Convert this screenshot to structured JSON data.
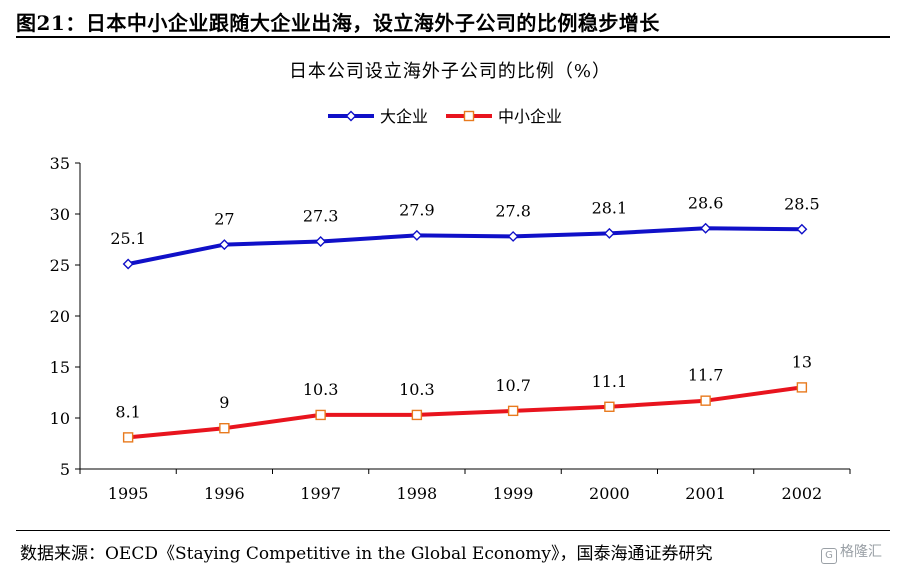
{
  "figure": {
    "title": "图21：日本中小企业跟随大企业出海，设立海外子公司的比例稳步增长",
    "source": "数据来源：OECD《Staying Competitive in the Global Economy》，国泰海通证券研究",
    "watermark": "格隆汇",
    "watermark_icon": "G"
  },
  "chart_data": {
    "type": "line",
    "title": "日本公司设立海外子公司的比例（%）",
    "xlabel": "",
    "ylabel": "",
    "categories": [
      "1995",
      "1996",
      "1997",
      "1998",
      "1999",
      "2000",
      "2001",
      "2002"
    ],
    "ylim": [
      5,
      35
    ],
    "yticks": [
      5,
      10,
      15,
      20,
      25,
      30,
      35
    ],
    "grid": false,
    "legend_position": "top-center",
    "series": [
      {
        "name": "大企业",
        "color": "#1010c8",
        "marker": "diamond",
        "values": [
          25.1,
          27,
          27.3,
          27.9,
          27.8,
          28.1,
          28.6,
          28.5
        ],
        "labels": [
          "25.1",
          "27",
          "27.3",
          "27.9",
          "27.8",
          "28.1",
          "28.6",
          "28.5"
        ]
      },
      {
        "name": "中小企业",
        "color": "#e8141e",
        "marker": "square",
        "values": [
          8.1,
          9,
          10.3,
          10.3,
          10.7,
          11.1,
          11.7,
          13
        ],
        "labels": [
          "8.1",
          "9",
          "10.3",
          "10.3",
          "10.7",
          "11.1",
          "11.7",
          "13"
        ]
      }
    ]
  }
}
